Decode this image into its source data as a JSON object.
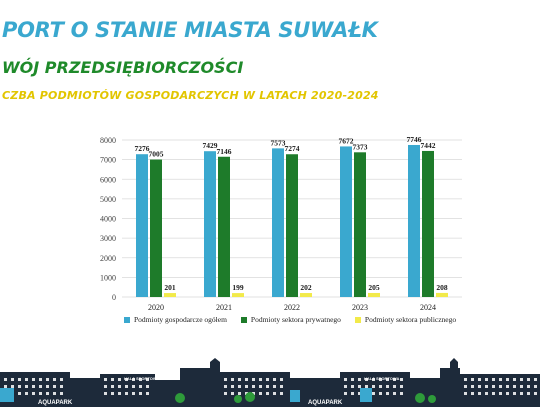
{
  "header": {
    "title": "PORT O STANIE MIASTA SUWAŁK",
    "subtitle": "WÓJ PRZEDSIĘBIORCZOŚCI",
    "section": "CZBA PODMIOTÓW GOSPODARCZYCH W LATACH 2020-2024"
  },
  "chart_data": {
    "type": "bar",
    "categories": [
      "2020",
      "2021",
      "2022",
      "2023",
      "2024"
    ],
    "series": [
      {
        "name": "Podmioty gospodarcze ogółem",
        "color": "#3aa8cf",
        "values": [
          7276,
          7429,
          7573,
          7672,
          7746
        ]
      },
      {
        "name": "Podmioty sektora prywatnego",
        "color": "#1e7b2a",
        "values": [
          7005,
          7146,
          7274,
          7373,
          7442
        ]
      },
      {
        "name": "Podmioty sektora publicznego",
        "color": "#f2ea4a",
        "values": [
          201,
          199,
          202,
          205,
          208
        ]
      }
    ],
    "ylim": [
      0,
      8000
    ],
    "yticks": [
      0,
      1000,
      2000,
      3000,
      4000,
      5000,
      6000,
      7000,
      8000
    ],
    "grid": true,
    "legend": "bottom"
  },
  "footer": {
    "left_sign": "AQUAPARK",
    "hall_sign": "HALA SPORTOWA",
    "right_sign": "AQUAPARK",
    "right_hall_sign": "HALA SPORTOWA"
  }
}
